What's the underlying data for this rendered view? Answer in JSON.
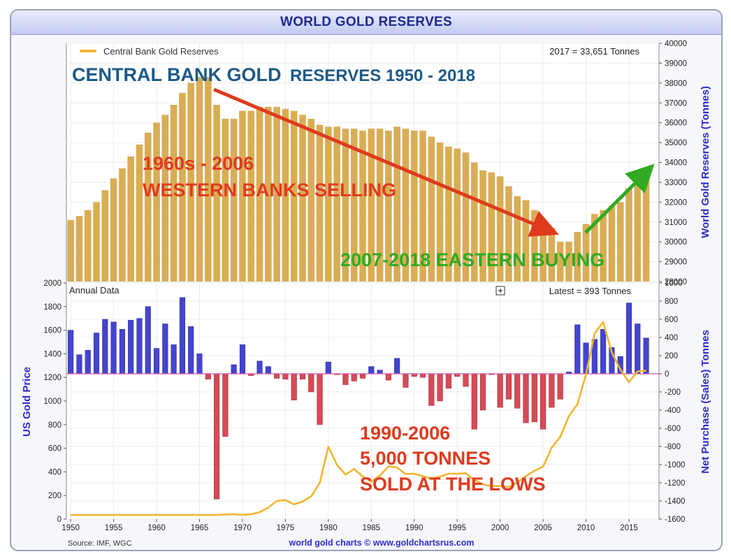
{
  "window_title": "WORLD GOLD RESERVES",
  "top_panel": {
    "legend_label": "Central Bank Gold Reserves",
    "latest_note": "2017 = 33,651 Tonnes",
    "right_axis_label": "World Gold Reserves (Tonnes)"
  },
  "bottom_panel": {
    "panel_label": "Annual Data",
    "latest_note": "Latest = 393 Tonnes",
    "left_axis_label": "US Gold Price",
    "right_axis_label": "Net Purchase (Sales) Tonnes"
  },
  "annotations": {
    "headline_part1": "CENTRAL BANK GOLD",
    "headline_part2": "RESERVES 1950 - 2018",
    "selling_line1": "1960s - 2006",
    "selling_line2": "WESTERN BANKS SELLING",
    "buying": "2007-2018 EASTERN BUYING",
    "lows_line1": "1990-2006",
    "lows_line2": "5,000 TONNES",
    "lows_line3": "SOLD AT THE LOWS"
  },
  "footer": {
    "source": "Source: IMF, WGC",
    "credit": "world gold charts © www.goldchartsrus.com"
  },
  "colors": {
    "reserve_bar": "#d9ad55",
    "purchase_bar": "#4444d0",
    "sale_bar": "#d84a55",
    "price_line": "#f2b530",
    "selling_arrow": "#e03a1e",
    "buying_arrow": "#2faa22",
    "axis_label": "#2b2bc8",
    "headline": "#1c5a86"
  },
  "chart_data": [
    {
      "type": "bar",
      "title": "",
      "x_label": "",
      "y_label": "World Gold Reserves (Tonnes)",
      "y_axis_side": "right",
      "ylim": [
        28000,
        40000
      ],
      "y_ticks": [
        28000,
        29000,
        30000,
        31000,
        32000,
        33000,
        34000,
        35000,
        36000,
        37000,
        38000,
        39000,
        40000
      ],
      "legend": "top-left",
      "series": [
        {
          "name": "Central Bank Gold Reserves",
          "x": [
            1950,
            1951,
            1952,
            1953,
            1954,
            1955,
            1956,
            1957,
            1958,
            1959,
            1960,
            1961,
            1962,
            1963,
            1964,
            1965,
            1966,
            1967,
            1968,
            1969,
            1970,
            1971,
            1972,
            1973,
            1974,
            1975,
            1976,
            1977,
            1978,
            1979,
            1980,
            1981,
            1982,
            1983,
            1984,
            1985,
            1986,
            1987,
            1988,
            1989,
            1990,
            1991,
            1992,
            1993,
            1994,
            1995,
            1996,
            1997,
            1998,
            1999,
            2000,
            2001,
            2002,
            2003,
            2004,
            2005,
            2006,
            2007,
            2008,
            2009,
            2010,
            2011,
            2012,
            2013,
            2014,
            2015,
            2016,
            2017
          ],
          "values": [
            31100,
            31300,
            31600,
            32000,
            32600,
            33200,
            33700,
            34300,
            34900,
            35500,
            36000,
            36400,
            36900,
            37500,
            38000,
            38300,
            38300,
            36900,
            36200,
            36200,
            36600,
            36600,
            36800,
            36800,
            36800,
            36700,
            36600,
            36400,
            36200,
            35900,
            35800,
            35800,
            35700,
            35700,
            35600,
            35700,
            35700,
            35600,
            35800,
            35700,
            35600,
            35600,
            35300,
            35000,
            34800,
            34700,
            34500,
            34000,
            33600,
            33500,
            33300,
            32800,
            32300,
            32100,
            31600,
            31100,
            30700,
            30000,
            30000,
            30500,
            30900,
            31400,
            31600,
            31800,
            32000,
            32700,
            33200,
            33651
          ]
        }
      ]
    },
    {
      "type": "bar",
      "title": "",
      "x_label": "",
      "x_range": [
        1950,
        2018
      ],
      "x_ticks": [
        1950,
        1955,
        1960,
        1965,
        1970,
        1975,
        1980,
        1985,
        1990,
        1995,
        2000,
        2005,
        2010,
        2015
      ],
      "y_label": "Net Purchase (Sales) Tonnes",
      "y_axis_side": "right",
      "ylim": [
        -1600,
        1000
      ],
      "y_ticks": [
        -1600,
        -1400,
        -1200,
        -1000,
        -800,
        -600,
        -400,
        -200,
        0,
        200,
        400,
        600,
        800,
        1000
      ],
      "series": [
        {
          "name": "",
          "x": [
            1950,
            1951,
            1952,
            1953,
            1954,
            1955,
            1956,
            1957,
            1958,
            1959,
            1960,
            1961,
            1962,
            1963,
            1964,
            1965,
            1966,
            1967,
            1968,
            1969,
            1970,
            1971,
            1972,
            1973,
            1974,
            1975,
            1976,
            1977,
            1978,
            1979,
            1980,
            1981,
            1982,
            1983,
            1984,
            1985,
            1986,
            1987,
            1988,
            1989,
            1990,
            1991,
            1992,
            1993,
            1994,
            1995,
            1996,
            1997,
            1998,
            1999,
            2000,
            2001,
            2002,
            2003,
            2004,
            2005,
            2006,
            2007,
            2008,
            2009,
            2010,
            2011,
            2012,
            2013,
            2014,
            2015,
            2016,
            2017
          ],
          "values": [
            480,
            210,
            260,
            450,
            600,
            570,
            490,
            590,
            610,
            740,
            280,
            550,
            320,
            840,
            520,
            220,
            -60,
            -1380,
            -690,
            100,
            320,
            -20,
            140,
            80,
            -50,
            -60,
            -290,
            -60,
            -200,
            -560,
            130,
            -10,
            -120,
            -80,
            -50,
            80,
            40,
            -70,
            170,
            -150,
            -30,
            -40,
            -350,
            -300,
            -160,
            -30,
            -140,
            -610,
            -400,
            -10,
            -370,
            -280,
            -380,
            -540,
            -530,
            -610,
            -370,
            -280,
            20,
            540,
            340,
            380,
            490,
            290,
            190,
            780,
            550,
            393
          ]
        }
      ]
    },
    {
      "type": "line",
      "title": "",
      "y_label": "US Gold Price",
      "y_axis_side": "left",
      "ylim": [
        0,
        2000
      ],
      "y_ticks": [
        0,
        200,
        400,
        600,
        800,
        1000,
        1200,
        1400,
        1600,
        1800,
        2000
      ],
      "series": [
        {
          "name": "",
          "x": [
            1950,
            1951,
            1952,
            1953,
            1954,
            1955,
            1956,
            1957,
            1958,
            1959,
            1960,
            1961,
            1962,
            1963,
            1964,
            1965,
            1966,
            1967,
            1968,
            1969,
            1970,
            1971,
            1972,
            1973,
            1974,
            1975,
            1976,
            1977,
            1978,
            1979,
            1980,
            1981,
            1982,
            1983,
            1984,
            1985,
            1986,
            1987,
            1988,
            1989,
            1990,
            1991,
            1992,
            1993,
            1994,
            1995,
            1996,
            1997,
            1998,
            1999,
            2000,
            2001,
            2002,
            2003,
            2004,
            2005,
            2006,
            2007,
            2008,
            2009,
            2010,
            2011,
            2012,
            2013,
            2014,
            2015,
            2016,
            2017
          ],
          "values": [
            35,
            35,
            35,
            35,
            35,
            35,
            35,
            35,
            35,
            35,
            35,
            35,
            35,
            35,
            35,
            35,
            35,
            35,
            39,
            41,
            36,
            41,
            58,
            97,
            154,
            161,
            125,
            148,
            193,
            307,
            613,
            460,
            376,
            424,
            361,
            317,
            368,
            447,
            437,
            381,
            384,
            362,
            344,
            360,
            384,
            384,
            388,
            331,
            294,
            279,
            279,
            271,
            310,
            363,
            409,
            445,
            604,
            697,
            872,
            972,
            1225,
            1572,
            1669,
            1411,
            1266,
            1160,
            1251,
            1257
          ]
        }
      ]
    }
  ]
}
